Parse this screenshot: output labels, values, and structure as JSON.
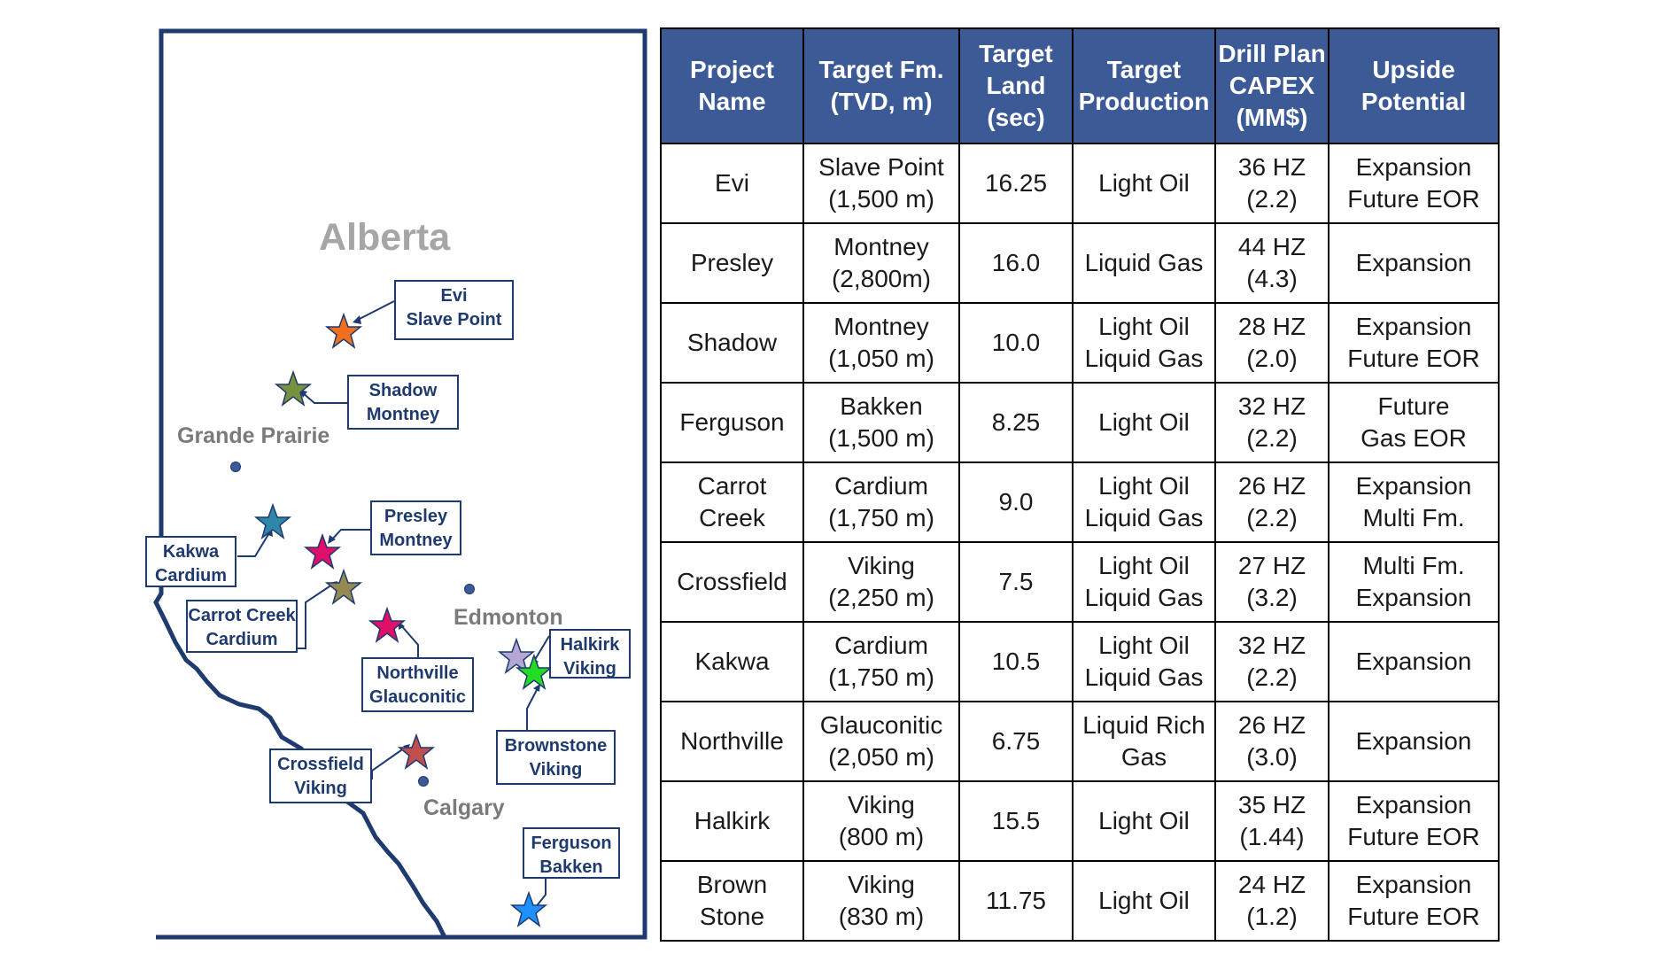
{
  "map": {
    "province": "Alberta",
    "cities": [
      {
        "id": "grande-prairie",
        "name": "Grande Prairie"
      },
      {
        "id": "edmonton",
        "name": "Edmonton"
      },
      {
        "id": "calgary",
        "name": "Calgary"
      }
    ],
    "labels": [
      {
        "id": "evi",
        "line1": "Evi",
        "line2": "Slave Point",
        "star_color": "#f07020"
      },
      {
        "id": "shadow",
        "line1": "Shadow",
        "line2": "Montney",
        "star_color": "#76923c"
      },
      {
        "id": "presley",
        "line1": "Presley",
        "line2": "Montney",
        "star_color": "#e0106a"
      },
      {
        "id": "kakwa",
        "line1": "Kakwa",
        "line2": "Cardium",
        "star_color": "#2e86a8"
      },
      {
        "id": "carrot-creek",
        "line1": "Carrot Creek",
        "line2": "Cardium",
        "star_color": "#948a54"
      },
      {
        "id": "northville",
        "line1": "Northville",
        "line2": "Glauconitic",
        "star_color": "#e0106a"
      },
      {
        "id": "halkirk",
        "line1": "Halkirk",
        "line2": "Viking",
        "star_color": "#b4a7d6"
      },
      {
        "id": "brownstone",
        "line1": "Brownstone",
        "line2": "Viking",
        "star_color": "#22dd22"
      },
      {
        "id": "crossfield",
        "line1": "Crossfield",
        "line2": "Viking",
        "star_color": "#c0504d"
      },
      {
        "id": "ferguson",
        "line1": "Ferguson",
        "line2": "Bakken",
        "star_color": "#1e90ff"
      }
    ]
  },
  "table": {
    "headers": [
      "Project\nName",
      "Target Fm.\n(TVD, m)",
      "Target\nLand\n(sec)",
      "Target\nProduction",
      "Drill Plan\nCAPEX\n(MM$)",
      "Upside\nPotential"
    ],
    "rows": [
      [
        "Evi",
        "Slave Point\n(1,500 m)",
        "16.25",
        "Light Oil",
        "36 HZ\n(2.2)",
        "Expansion\nFuture EOR"
      ],
      [
        "Presley",
        "Montney\n(2,800m)",
        "16.0",
        "Liquid Gas",
        "44 HZ\n(4.3)",
        "Expansion"
      ],
      [
        "Shadow",
        "Montney\n(1,050 m)",
        "10.0",
        "Light Oil\nLiquid Gas",
        "28 HZ\n(2.0)",
        "Expansion\nFuture EOR"
      ],
      [
        "Ferguson",
        "Bakken\n(1,500 m)",
        "8.25",
        "Light Oil",
        "32 HZ\n(2.2)",
        "Future\nGas EOR"
      ],
      [
        "Carrot\nCreek",
        "Cardium\n(1,750 m)",
        "9.0",
        "Light Oil\nLiquid Gas",
        "26 HZ\n(2.2)",
        "Expansion\nMulti Fm."
      ],
      [
        "Crossfield",
        "Viking\n(2,250 m)",
        "7.5",
        "Light Oil\nLiquid Gas",
        "27 HZ\n(3.2)",
        "Multi Fm.\nExpansion"
      ],
      [
        "Kakwa",
        "Cardium\n(1,750 m)",
        "10.5",
        "Light Oil\nLiquid Gas",
        "32 HZ\n(2.2)",
        "Expansion"
      ],
      [
        "Northville",
        "Glauconitic\n(2,050 m)",
        "6.75",
        "Liquid Rich\nGas",
        "26 HZ\n(3.0)",
        "Expansion"
      ],
      [
        "Halkirk",
        "Viking\n(800 m)",
        "15.5",
        "Light Oil",
        "35 HZ\n(1.44)",
        "Expansion\nFuture EOR"
      ],
      [
        "Brown\nStone",
        "Viking\n(830 m)",
        "11.75",
        "Light Oil",
        "24 HZ\n(1.2)",
        "Expansion\nFuture EOR"
      ]
    ]
  }
}
